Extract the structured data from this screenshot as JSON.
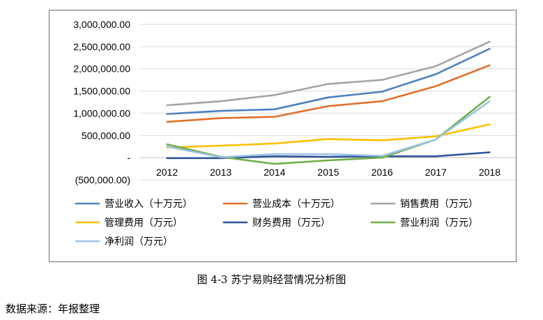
{
  "caption": "图 4-3  苏宁易购经营情况分析图",
  "source": "数据来源：年报整理",
  "chart_data": {
    "type": "line",
    "categories": [
      "2012",
      "2013",
      "2014",
      "2015",
      "2016",
      "2017",
      "2018"
    ],
    "ylim": [
      -500000,
      3000000
    ],
    "yticks": [
      -500000,
      0,
      500000,
      1000000,
      1500000,
      2000000,
      2500000,
      3000000
    ],
    "ytick_labels": [
      "(500,000.00)",
      "-",
      "500,000.00",
      "1,000,000.00",
      "1,500,000.00",
      "2,000,000.00",
      "2,500,000.00",
      "3,000,000.00"
    ],
    "grid": true,
    "legend_position": "bottom",
    "series": [
      {
        "name": "营业收入（十万元）",
        "color": "#4e81bd",
        "values": [
          983000,
          1053000,
          1089000,
          1356000,
          1486000,
          1879000,
          2450000
        ]
      },
      {
        "name": "营业成本（十万元）",
        "color": "#e0702a",
        "values": [
          806000,
          890000,
          920000,
          1160000,
          1270000,
          1610000,
          2080000
        ]
      },
      {
        "name": "销售费用（万元）",
        "color": "#a5a5a5",
        "values": [
          1180000,
          1270000,
          1410000,
          1660000,
          1750000,
          2060000,
          2610000
        ]
      },
      {
        "name": "管理费用（万元）",
        "color": "#ffc000",
        "values": [
          230000,
          270000,
          320000,
          420000,
          390000,
          480000,
          750000
        ]
      },
      {
        "name": "财务费用（万元）",
        "color": "#2f5597",
        "values": [
          -10000,
          -10000,
          30000,
          20000,
          30000,
          30000,
          120000
        ]
      },
      {
        "name": "营业利润（万元）",
        "color": "#70ad47",
        "values": [
          300000,
          20000,
          -140000,
          -60000,
          0,
          410000,
          1370000
        ]
      },
      {
        "name": "净利润（万元）",
        "color": "#9dc3e6",
        "values": [
          250000,
          10000,
          80000,
          80000,
          40000,
          410000,
          1270000
        ]
      }
    ]
  }
}
